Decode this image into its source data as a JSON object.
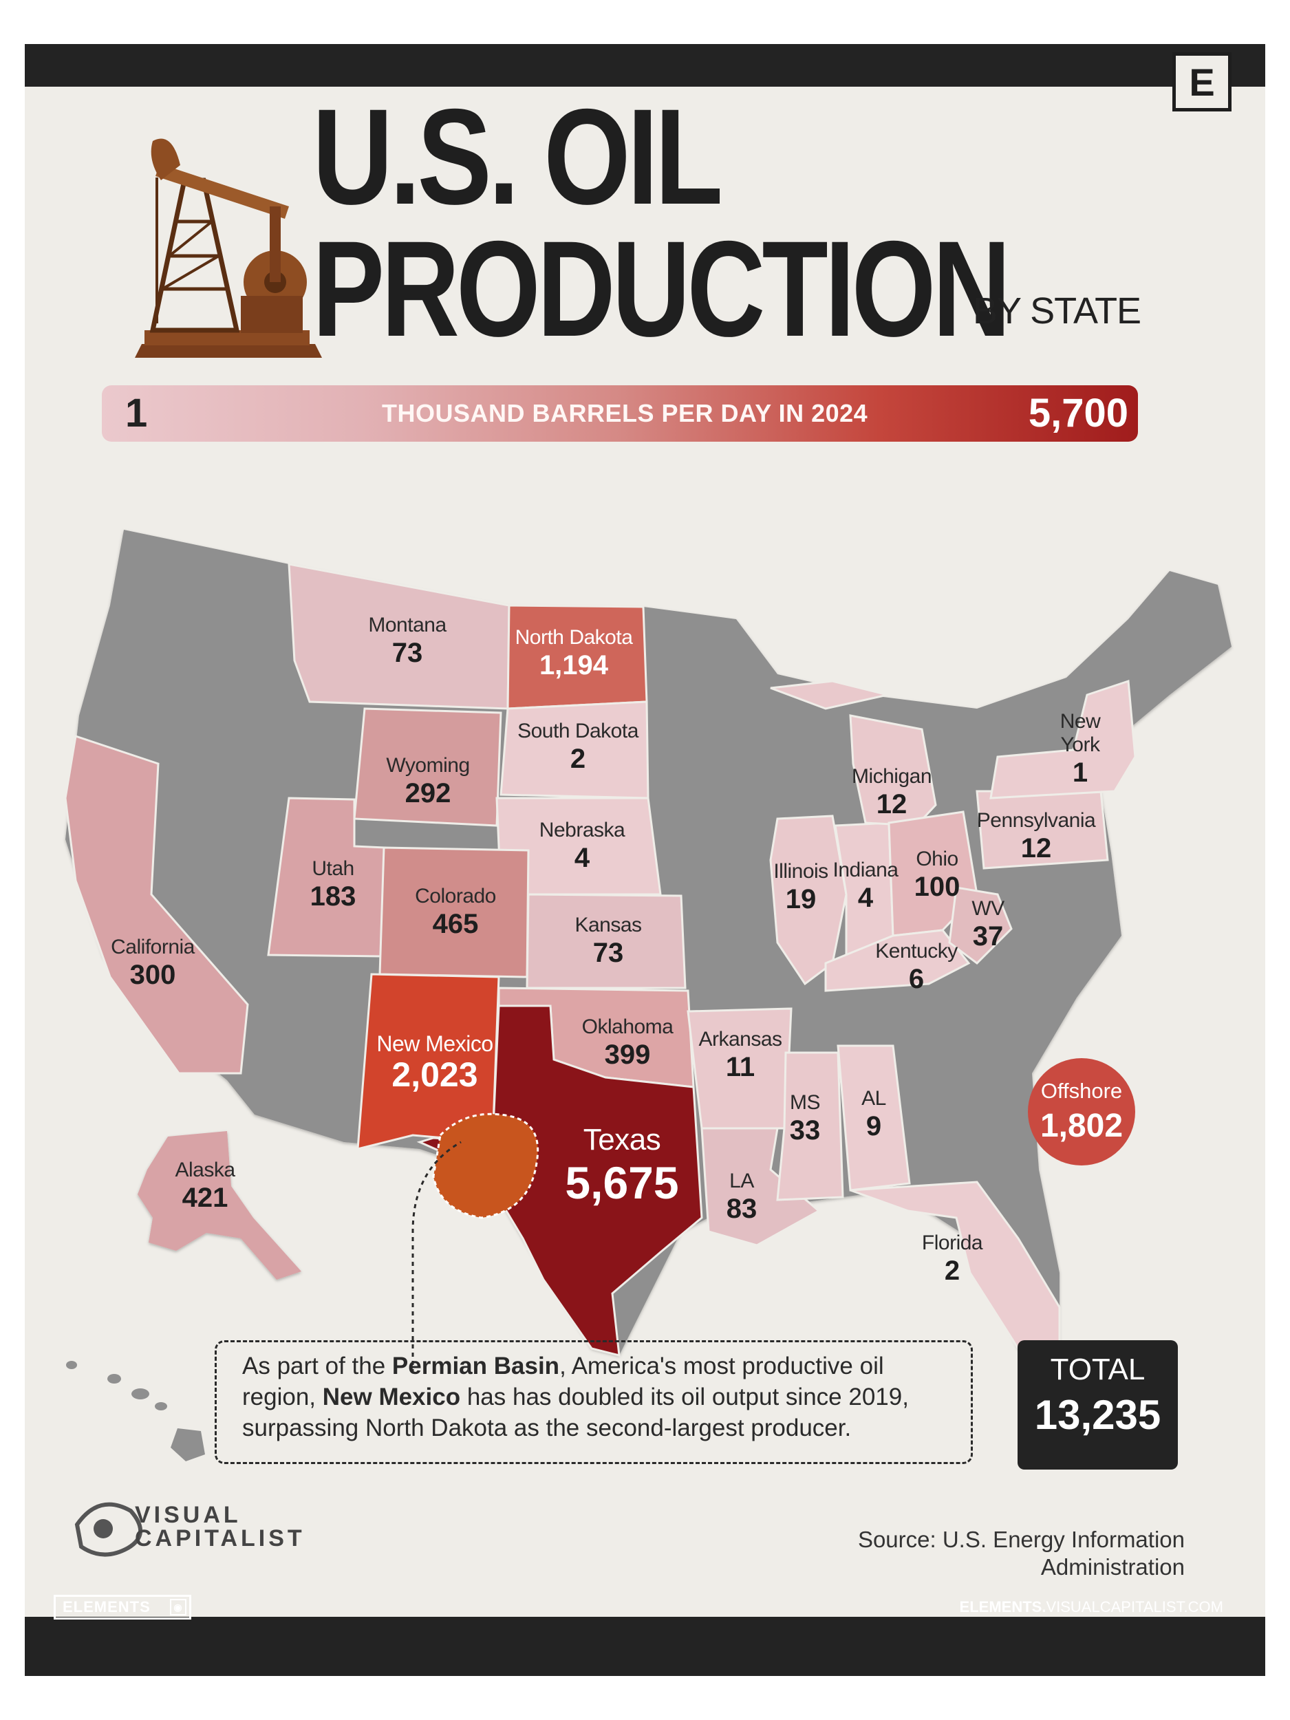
{
  "brand_letter": "E",
  "title": {
    "line1": "U.S. OIL",
    "line2": "PRODUCTION",
    "sub": "BY STATE"
  },
  "scale": {
    "min": "1",
    "label": "THOUSAND BARRELS PER DAY IN 2024",
    "max": "5,700"
  },
  "states": {
    "montana": {
      "name": "Montana",
      "value": "73"
    },
    "north_dakota": {
      "name": "North Dakota",
      "value": "1,194"
    },
    "south_dakota": {
      "name": "South Dakota",
      "value": "2"
    },
    "wyoming": {
      "name": "Wyoming",
      "value": "292"
    },
    "nebraska": {
      "name": "Nebraska",
      "value": "4"
    },
    "utah": {
      "name": "Utah",
      "value": "183"
    },
    "colorado": {
      "name": "Colorado",
      "value": "465"
    },
    "kansas": {
      "name": "Kansas",
      "value": "73"
    },
    "california": {
      "name": "California",
      "value": "300"
    },
    "new_mexico": {
      "name": "New Mexico",
      "value": "2,023"
    },
    "oklahoma": {
      "name": "Oklahoma",
      "value": "399"
    },
    "texas": {
      "name": "Texas",
      "value": "5,675"
    },
    "arkansas": {
      "name": "Arkansas",
      "value": "11"
    },
    "louisiana": {
      "name": "LA",
      "value": "83"
    },
    "mississippi": {
      "name": "MS",
      "value": "33"
    },
    "alabama": {
      "name": "AL",
      "value": "9"
    },
    "florida": {
      "name": "Florida",
      "value": "2"
    },
    "illinois": {
      "name": "Illinois",
      "value": "19"
    },
    "indiana": {
      "name": "Indiana",
      "value": "4"
    },
    "michigan": {
      "name": "Michigan",
      "value": "12"
    },
    "ohio": {
      "name": "Ohio",
      "value": "100"
    },
    "kentucky": {
      "name": "Kentucky",
      "value": "6"
    },
    "west_virginia": {
      "name": "WV",
      "value": "37"
    },
    "pennsylvania": {
      "name": "Pennsylvania",
      "value": "12"
    },
    "new_york": {
      "name": "New York",
      "value": "1"
    },
    "alaska": {
      "name": "Alaska",
      "value": "421"
    }
  },
  "offshore": {
    "name": "Offshore",
    "value": "1,802"
  },
  "callout": {
    "t1": "As part of the ",
    "b1": "Permian Basin",
    "t2": ", America's most productive oil region, ",
    "b2": "New Mexico",
    "t3": " has has doubled its oil output since 2019, surpassing North Dakota as the second-largest producer."
  },
  "total": {
    "label": "TOTAL",
    "value": "13,235"
  },
  "logo": {
    "line1": "VISUAL",
    "line2": "CAPITALIST"
  },
  "source": "Source: U.S. Energy Information Administration",
  "footer": {
    "badge": "ELEMENTS",
    "url_bold": "ELEMENTS.",
    "url_rest": "VISUALCAPITALIST.COM"
  },
  "colors": {
    "background": "#efede8",
    "no_data": "#8f8f8f",
    "low": "#ebc9cd",
    "high": "#8a1419",
    "offshore": "#c94a40",
    "dark": "#232323"
  }
}
